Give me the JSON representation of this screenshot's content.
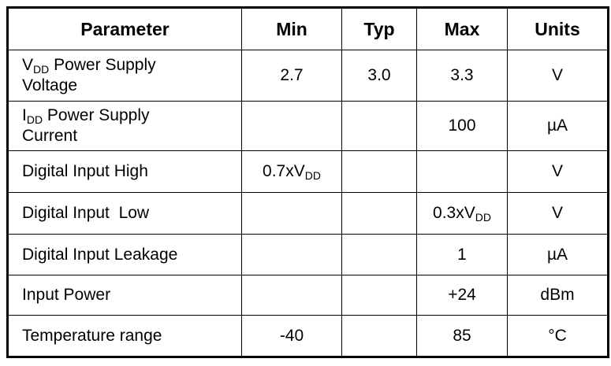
{
  "table": {
    "header": [
      "Parameter",
      "Min",
      "Typ",
      "Max",
      "Units"
    ],
    "rows": [
      [
        {
          "text": "V",
          "sub": "DD",
          "tail": " Power Supply Voltage"
        },
        "2.7",
        "3.0",
        "3.3",
        "V"
      ],
      [
        {
          "text": "I",
          "sub": "DD",
          "tail": " Power Supply Current"
        },
        null,
        null,
        "100",
        "µA"
      ],
      [
        "Digital Input High",
        {
          "text": "0.7xV",
          "sub": "DD"
        },
        null,
        null,
        "V"
      ],
      [
        "Digital Input  Low",
        null,
        null,
        {
          "text": "0.3xV",
          "sub": "DD"
        },
        "V"
      ],
      [
        "Digital Input Leakage",
        null,
        null,
        "1",
        "µA"
      ],
      [
        "Input Power",
        null,
        null,
        "+24",
        "dBm"
      ],
      [
        "Temperature range",
        "-40",
        null,
        "85",
        "°C"
      ]
    ]
  }
}
